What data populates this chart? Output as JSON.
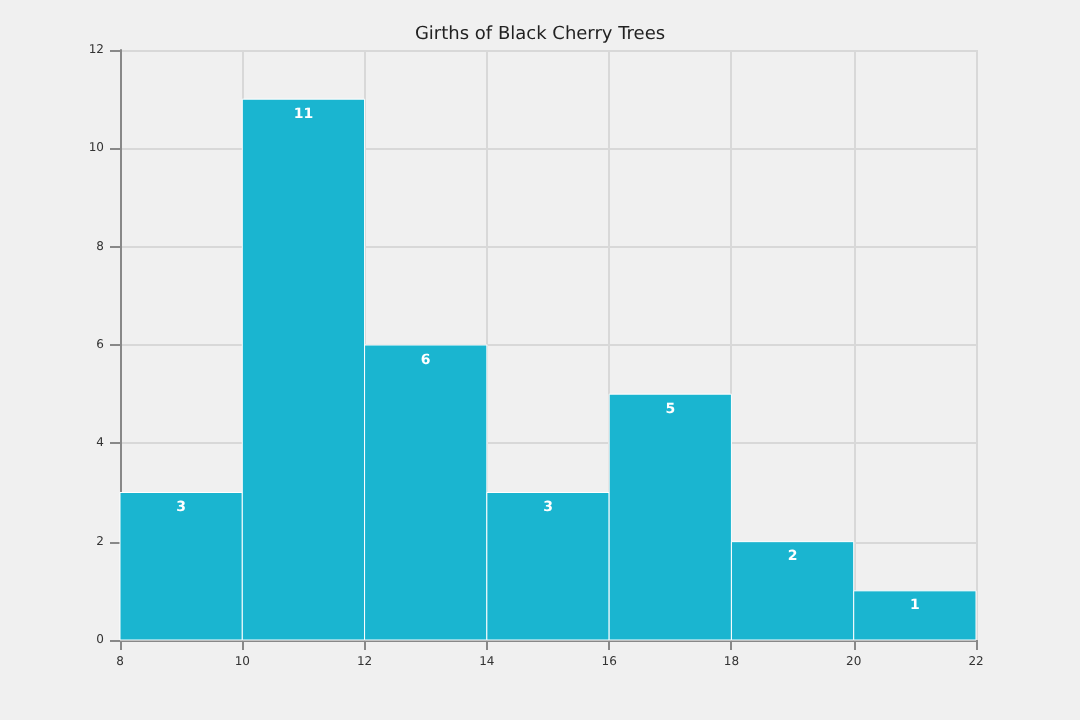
{
  "chart_data": {
    "type": "histogram",
    "title": "Girths of Black Cherry Trees",
    "bins": [
      8,
      10,
      12,
      14,
      16,
      18,
      20,
      22
    ],
    "values": [
      3,
      11,
      6,
      3,
      5,
      2,
      1
    ],
    "color": "#1ab5d0",
    "xlim": [
      8,
      22
    ],
    "xticks": [
      8,
      10,
      12,
      14,
      16,
      18,
      20,
      22
    ],
    "ylim": [
      0,
      12
    ],
    "yticks": [
      0,
      2,
      4,
      6,
      8,
      10,
      12
    ],
    "grid": true,
    "data_labels": true
  }
}
